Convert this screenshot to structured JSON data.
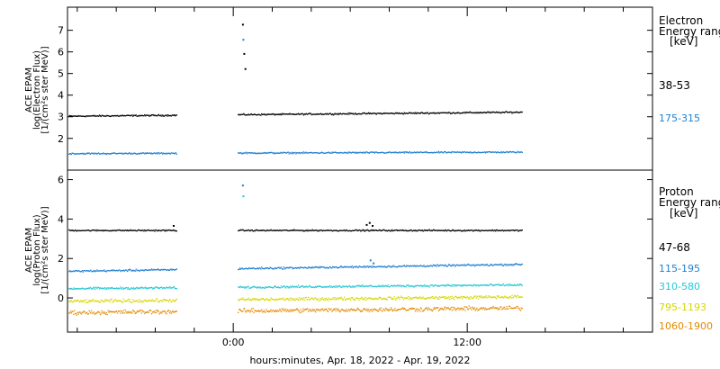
{
  "xlabel": "hours:minutes, Apr. 18, 2022 - Apr. 19, 2022",
  "x_ticks": [
    {
      "value": 0,
      "label": "0:00"
    },
    {
      "value": 12,
      "label": "12:00"
    }
  ],
  "xlim": [
    -8.5,
    21.5
  ],
  "gaps": [
    [
      -2.9,
      0.2
    ],
    [
      0.75,
      0.75
    ]
  ],
  "data_end": 14.8,
  "chart_data": [
    {
      "type": "scatter",
      "ylabel": [
        "ACE EPAM",
        "log(Electron Flux)",
        "[1/(cm²s ster MeV)]"
      ],
      "ylim": [
        0.7,
        7.9
      ],
      "yticks": [
        2,
        3,
        4,
        5,
        6,
        7
      ],
      "legend_title": [
        "Electron",
        "Energy ranges",
        "[keV]"
      ],
      "series": [
        {
          "name": "38-53",
          "color": "#000000",
          "baseline": 3.05,
          "noise": 0.05,
          "trend": 0.008,
          "spikes": [
            [
              0.45,
              7.3
            ],
            [
              0.52,
              5.95
            ],
            [
              0.58,
              5.25
            ]
          ]
        },
        {
          "name": "175-315",
          "color": "#1f7fd0",
          "baseline": 1.32,
          "noise": 0.05,
          "trend": 0.003,
          "spikes": [
            [
              0.47,
              6.6
            ]
          ]
        }
      ]
    },
    {
      "type": "scatter",
      "ylabel": [
        "ACE EPAM",
        "log(Proton Flux)",
        "[1/(cm²s ster MeV)]"
      ],
      "ylim": [
        -1.55,
        6.3
      ],
      "yticks": [
        0,
        2,
        4,
        6
      ],
      "legend_title": [
        "Proton",
        "Energy ranges",
        "[keV]"
      ],
      "series": [
        {
          "name": "47-68",
          "color": "#000000",
          "baseline": 3.45,
          "noise": 0.05,
          "trend": 0.0,
          "spikes": [
            [
              -3.1,
              3.7
            ],
            [
              6.8,
              3.75
            ],
            [
              6.95,
              3.85
            ],
            [
              7.1,
              3.7
            ]
          ]
        },
        {
          "name": "115-195",
          "color": "#1f7fd0",
          "baseline": 1.38,
          "noise": 0.07,
          "trend": 0.015,
          "spikes": [
            [
              0.45,
              5.75
            ],
            [
              7.0,
              1.95
            ],
            [
              7.15,
              1.8
            ]
          ]
        },
        {
          "name": "310-580",
          "color": "#22c7d6",
          "baseline": 0.5,
          "noise": 0.08,
          "trend": 0.008,
          "spikes": [
            [
              0.47,
              5.2
            ]
          ]
        },
        {
          "name": "795-1193",
          "color": "#d6d600",
          "baseline": -0.15,
          "noise": 0.12,
          "trend": 0.01,
          "spikes": []
        },
        {
          "name": "1060-1900",
          "color": "#e08a00",
          "baseline": -0.72,
          "noise": 0.16,
          "trend": 0.01,
          "spikes": []
        }
      ]
    }
  ]
}
